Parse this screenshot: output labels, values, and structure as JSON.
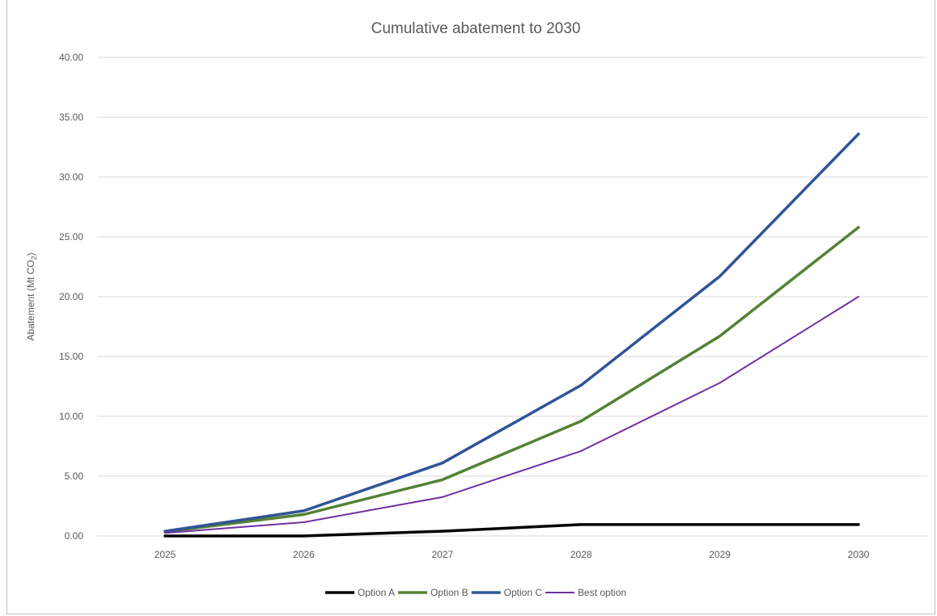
{
  "chart_data": {
    "type": "line",
    "title": "Cumulative abatement to 2030",
    "ylabel": "Abatement (Mt CO",
    "ylabel_sub": "2",
    "ylabel_close": ")",
    "xlabel": "",
    "x": [
      "2025",
      "2026",
      "2027",
      "2028",
      "2029",
      "2030"
    ],
    "ylim": [
      0,
      40
    ],
    "yticks": [
      "0.00",
      "5.00",
      "10.00",
      "15.00",
      "20.00",
      "25.00",
      "30.00",
      "35.00",
      "40.00"
    ],
    "grid": true,
    "legend_position": "bottom",
    "series": [
      {
        "name": "Option A",
        "color": "#000000",
        "width": 3.5,
        "values": [
          0.0,
          0.0,
          0.4,
          0.95,
          0.95,
          0.95
        ]
      },
      {
        "name": "Option B",
        "color": "#548235",
        "width": 3.5,
        "values": [
          0.35,
          1.8,
          4.7,
          9.6,
          16.7,
          25.8
        ]
      },
      {
        "name": "Option C",
        "color": "#2f5597",
        "width": 3.5,
        "values": [
          0.4,
          2.1,
          6.1,
          12.6,
          21.7,
          33.6
        ]
      },
      {
        "name": "Best option",
        "color": "#7030a0",
        "width": 2,
        "values": [
          0.25,
          1.15,
          3.25,
          7.1,
          12.8,
          20.0
        ]
      }
    ]
  }
}
